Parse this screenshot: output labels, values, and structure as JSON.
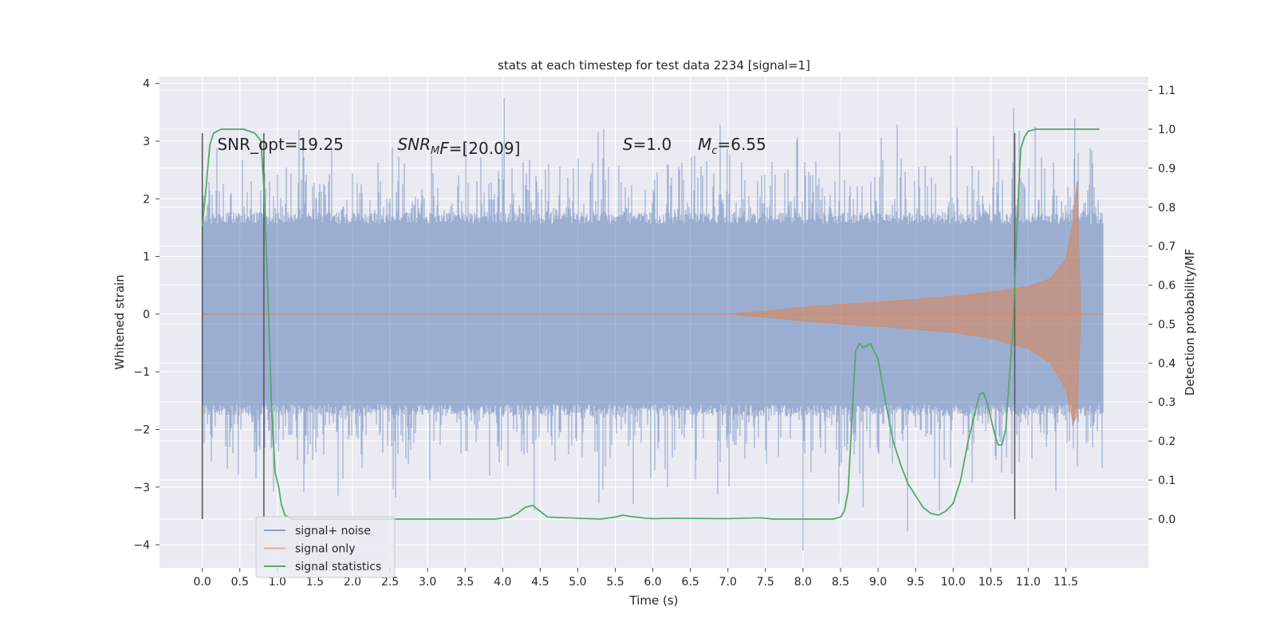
{
  "chart_data": {
    "type": "line",
    "title": "stats at each timestep for test data 2234 [signal=1]",
    "xlabel": "Time (s)",
    "ylabel_left": "Whitened strain",
    "ylabel_right": "Detection probability/MF",
    "xlim": [
      -0.57,
      12.6
    ],
    "ylim_left": [
      -4.4,
      4.12
    ],
    "ylim_right": [
      -0.125,
      1.135
    ],
    "x_ticks": [
      "0.0",
      "0.5",
      "1.0",
      "1.5",
      "2.0",
      "2.5",
      "3.0",
      "3.5",
      "4.0",
      "4.5",
      "5.0",
      "5.5",
      "6.0",
      "6.5",
      "7.0",
      "7.5",
      "8.0",
      "8.5",
      "9.0",
      "9.5",
      "10.0",
      "10.5",
      "11.0",
      "11.5"
    ],
    "y_ticks_left": [
      "−4",
      "−3",
      "−2",
      "−1",
      "0",
      "1",
      "2",
      "3",
      "4"
    ],
    "y_ticks_right": [
      "0.0",
      "0.1",
      "0.2",
      "0.3",
      "0.4",
      "0.5",
      "0.6",
      "0.7",
      "0.8",
      "0.9",
      "1.0",
      "1.1"
    ],
    "grid": true,
    "legend_position": "lower-left",
    "annotations": [
      {
        "text": "SNR_opt=19.25",
        "x": 0.2,
        "y": 2.85
      },
      {
        "text": "SNR",
        "sub": "M",
        "tail": "F=[20.09]",
        "x": 2.6,
        "y": 2.85
      },
      {
        "text": "S",
        "tail": "=1.0",
        "x": 5.6,
        "y": 2.85
      },
      {
        "text": "M",
        "sub": "c",
        "tail": "=6.55",
        "x": 6.6,
        "y": 2.85
      }
    ],
    "vertical_lines": [
      {
        "x": 0.0,
        "ymin": 0.0,
        "ymax": 0.99
      },
      {
        "x": 0.82,
        "ymin": 0.0,
        "ymax": 0.99
      },
      {
        "x": 10.82,
        "ymin": 0.0,
        "ymax": 0.99
      }
    ],
    "series": [
      {
        "name": "signal+ noise",
        "axis": "left",
        "color": "#4c72b0",
        "style": "noise band",
        "x_range": [
          0.0,
          12.0
        ],
        "typical_amplitude": 1.7,
        "peak_max": 3.75,
        "peak_min": -4.1
      },
      {
        "name": "signal only",
        "axis": "left",
        "color": "#dd8452",
        "style": "chirp envelope",
        "x": [
          0.0,
          7.0,
          7.5,
          8.0,
          8.5,
          9.0,
          9.5,
          10.0,
          10.5,
          11.0,
          11.3,
          11.5,
          11.6,
          11.65,
          11.7,
          12.0
        ],
        "upper": [
          0.0,
          0.0,
          0.05,
          0.12,
          0.17,
          0.21,
          0.26,
          0.31,
          0.38,
          0.48,
          0.62,
          0.95,
          1.6,
          2.3,
          0.0,
          0.0
        ],
        "lower": [
          0.0,
          0.0,
          -0.05,
          -0.12,
          -0.17,
          -0.21,
          -0.26,
          -0.32,
          -0.42,
          -0.6,
          -0.85,
          -1.3,
          -1.9,
          -1.75,
          0.0,
          0.0
        ]
      },
      {
        "name": "signal statistics",
        "axis": "right",
        "color": "#55a868",
        "x": [
          0.0,
          0.05,
          0.1,
          0.15,
          0.25,
          0.4,
          0.55,
          0.7,
          0.78,
          0.82,
          0.87,
          0.92,
          0.97,
          1.02,
          1.05,
          1.1,
          1.2,
          1.5,
          2.0,
          3.0,
          3.5,
          3.9,
          4.1,
          4.2,
          4.3,
          4.4,
          4.5,
          4.6,
          5.0,
          5.3,
          5.5,
          5.6,
          5.7,
          5.9,
          6.0,
          6.3,
          7.0,
          7.4,
          7.5,
          7.6,
          8.0,
          8.4,
          8.5,
          8.55,
          8.6,
          8.65,
          8.7,
          8.75,
          8.8,
          8.9,
          9.0,
          9.1,
          9.2,
          9.3,
          9.4,
          9.5,
          9.6,
          9.7,
          9.8,
          9.9,
          10.0,
          10.1,
          10.2,
          10.3,
          10.35,
          10.4,
          10.45,
          10.5,
          10.55,
          10.6,
          10.65,
          10.7,
          10.8,
          10.85,
          10.9,
          10.95,
          11.0,
          11.1,
          11.3,
          11.6,
          11.95
        ],
        "y": [
          0.75,
          0.85,
          0.96,
          0.99,
          1.0,
          1.0,
          1.0,
          0.99,
          0.97,
          0.85,
          0.6,
          0.3,
          0.12,
          0.08,
          0.04,
          0.01,
          0.0,
          0.0,
          0.0,
          0.0,
          0.0,
          0.0,
          0.005,
          0.015,
          0.03,
          0.035,
          0.02,
          0.005,
          0.002,
          0.0,
          0.005,
          0.01,
          0.007,
          0.002,
          0.001,
          0.002,
          0.001,
          0.003,
          0.002,
          0.0,
          0.0,
          0.0,
          0.005,
          0.02,
          0.07,
          0.25,
          0.43,
          0.45,
          0.44,
          0.45,
          0.41,
          0.3,
          0.2,
          0.14,
          0.09,
          0.06,
          0.03,
          0.015,
          0.01,
          0.02,
          0.04,
          0.1,
          0.2,
          0.28,
          0.32,
          0.325,
          0.3,
          0.26,
          0.22,
          0.19,
          0.19,
          0.23,
          0.5,
          0.75,
          0.95,
          0.98,
          0.995,
          1.0,
          1.0,
          1.0,
          1.0
        ]
      }
    ]
  }
}
